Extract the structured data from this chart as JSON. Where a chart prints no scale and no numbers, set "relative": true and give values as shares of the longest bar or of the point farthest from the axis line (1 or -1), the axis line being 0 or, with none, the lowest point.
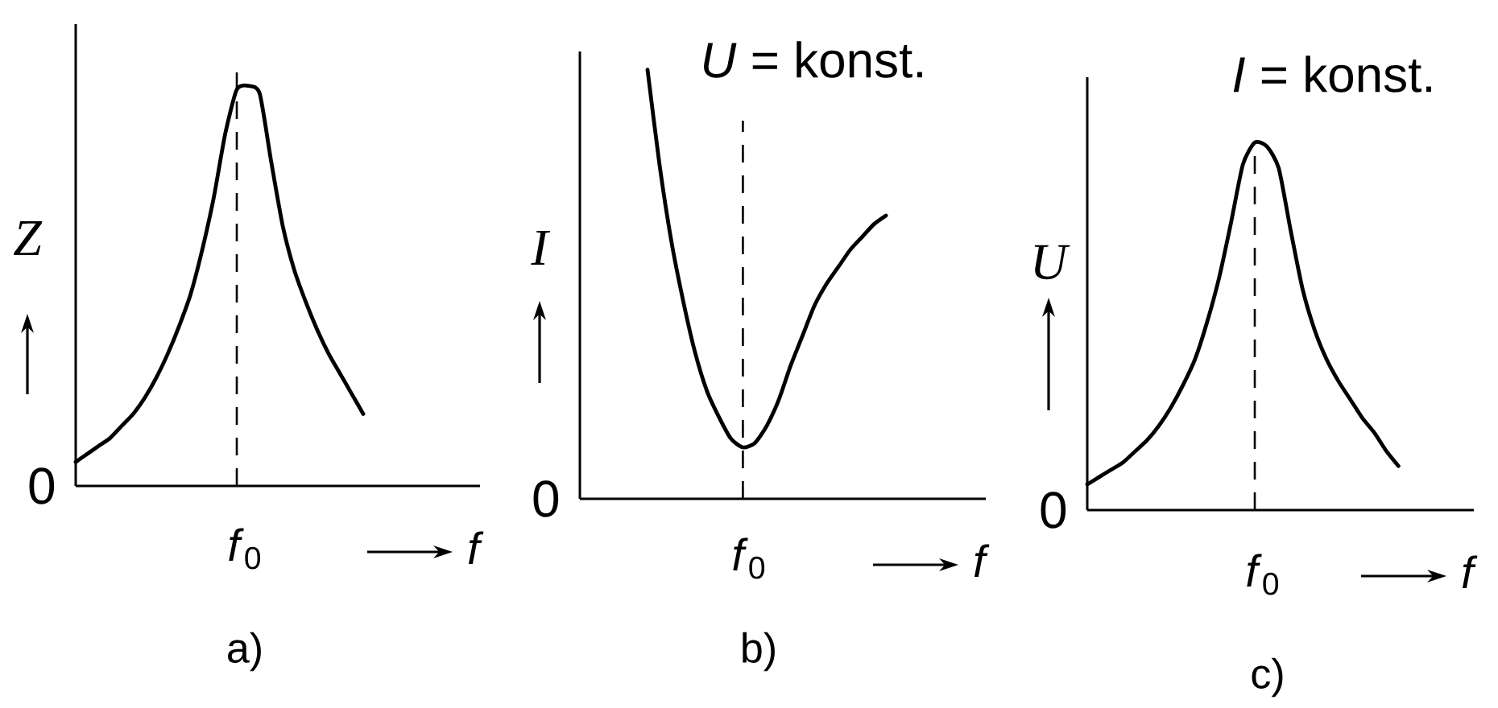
{
  "chart_data": [
    {
      "type": "line",
      "relative": true,
      "xlabel": "f",
      "ylabel": "Z",
      "color": "#000000",
      "categories": [
        null,
        null,
        null,
        null,
        null,
        null,
        null,
        null,
        null,
        null,
        null,
        null,
        null,
        null,
        null,
        null,
        null,
        null,
        null,
        null,
        null,
        null,
        null,
        null,
        null,
        null
      ],
      "values": [
        0.06,
        0.08,
        0.1,
        0.12,
        0.15,
        0.18,
        0.22,
        0.27,
        0.33,
        0.4,
        0.48,
        0.59,
        0.72,
        0.88,
        0.99,
        1.0,
        0.98,
        0.81,
        0.65,
        0.54,
        0.46,
        0.39,
        0.33,
        0.28,
        0.23,
        0.18
      ],
      "annotations": [
        "0",
        "*f*$_{0}$",
        "a)"
      ]
    },
    {
      "type": "line",
      "relative": true,
      "title": "*U* = konst.",
      "xlabel": "f",
      "ylabel": "I",
      "color": "#000000",
      "categories": [
        null,
        null,
        null,
        null,
        null,
        null,
        null,
        null,
        null,
        null,
        null,
        null,
        null,
        null,
        null,
        null,
        null,
        null,
        null,
        null,
        null
      ],
      "values": [
        1.0,
        0.78,
        0.6,
        0.46,
        0.34,
        0.25,
        0.19,
        0.14,
        0.12,
        0.13,
        0.17,
        0.23,
        0.31,
        0.38,
        0.45,
        0.5,
        0.54,
        0.58,
        0.61,
        0.64,
        0.66
      ],
      "annotations": [
        "0",
        "*f*$_{0}$",
        "b)"
      ]
    },
    {
      "type": "line",
      "relative": true,
      "title": "*I* = konst.",
      "xlabel": "f",
      "ylabel": "U",
      "color": "#000000",
      "categories": [
        null,
        null,
        null,
        null,
        null,
        null,
        null,
        null,
        null,
        null,
        null,
        null,
        null,
        null,
        null,
        null,
        null,
        null,
        null,
        null,
        null,
        null,
        null,
        null,
        null,
        null,
        null
      ],
      "values": [
        0.07,
        0.09,
        0.11,
        0.13,
        0.16,
        0.19,
        0.23,
        0.28,
        0.34,
        0.41,
        0.51,
        0.63,
        0.78,
        0.94,
        1.0,
        0.99,
        0.93,
        0.76,
        0.6,
        0.49,
        0.41,
        0.35,
        0.3,
        0.25,
        0.21,
        0.16,
        0.12
      ],
      "annotations": [
        "0",
        "*f*$_{0}$",
        "c)"
      ]
    }
  ]
}
